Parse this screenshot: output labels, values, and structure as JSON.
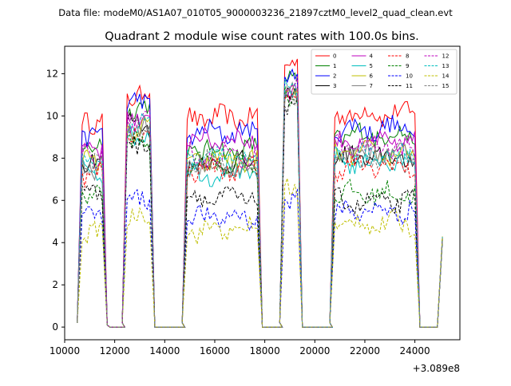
{
  "chart_data": {
    "type": "line",
    "suptitle": "Data file: modeM0/AS1A07_010T05_9000003236_21897cztM0_level2_quad_clean.evt",
    "title": "Quadrant 2 module wise count rates with 100.0s bins.",
    "xlabel": "",
    "ylabel": "",
    "x_offset_label": "+3.089e8",
    "xlim": [
      10000,
      25800
    ],
    "ylim": [
      -0.6,
      13.3
    ],
    "x_ticks": [
      10000,
      12000,
      14000,
      16000,
      18000,
      20000,
      22000,
      24000
    ],
    "x_tick_labels": [
      "10000",
      "12000",
      "14000",
      "16000",
      "18000",
      "20000",
      "22000",
      "24000"
    ],
    "y_ticks": [
      0,
      2,
      4,
      6,
      8,
      10,
      12
    ],
    "y_tick_labels": [
      "0",
      "2",
      "4",
      "6",
      "8",
      "10",
      "12"
    ],
    "grid": false,
    "legend_position": "upper-right",
    "bin_seconds": 100,
    "segments": [
      {
        "name": "on-1",
        "x_start": 10700,
        "x_end": 11500
      },
      {
        "name": "on-2",
        "x_start": 12500,
        "x_end": 13400
      },
      {
        "name": "on-3",
        "x_start": 14900,
        "x_end": 17700
      },
      {
        "name": "on-4",
        "x_start": 18800,
        "x_end": 19300
      },
      {
        "name": "on-5",
        "x_start": 20800,
        "x_end": 24000
      }
    ],
    "gaps": [
      {
        "x_start": 11800,
        "x_end": 12400
      },
      {
        "x_start": 13600,
        "x_end": 14800
      },
      {
        "x_start": 17900,
        "x_end": 18700
      },
      {
        "x_start": 19500,
        "x_end": 20700
      },
      {
        "x_start": 24200,
        "x_end": 24900
      }
    ],
    "final_point": {
      "x": 25100,
      "y": 4.2
    },
    "series": [
      {
        "name": "0",
        "color": "#ff0000",
        "dash": "solid",
        "levels": [
          9.8,
          11.0,
          9.9,
          12.3,
          10.1
        ]
      },
      {
        "name": "1",
        "color": "#008000",
        "dash": "solid",
        "levels": [
          8.7,
          10.3,
          8.4,
          11.6,
          9.1
        ]
      },
      {
        "name": "2",
        "color": "#0000ff",
        "dash": "solid",
        "levels": [
          9.1,
          10.6,
          9.2,
          11.9,
          9.4
        ]
      },
      {
        "name": "3",
        "color": "#000000",
        "dash": "solid",
        "levels": [
          7.8,
          9.6,
          7.7,
          11.2,
          8.0
        ]
      },
      {
        "name": "4",
        "color": "#bf00bf",
        "dash": "solid",
        "levels": [
          8.4,
          9.9,
          8.9,
          11.4,
          8.7
        ]
      },
      {
        "name": "5",
        "color": "#00bfbf",
        "dash": "solid",
        "levels": [
          7.5,
          9.2,
          7.3,
          10.9,
          7.8
        ]
      },
      {
        "name": "6",
        "color": "#bfbf00",
        "dash": "solid",
        "levels": [
          8.0,
          9.4,
          7.9,
          11.0,
          8.2
        ]
      },
      {
        "name": "7",
        "color": "#808080",
        "dash": "solid",
        "levels": [
          7.6,
          9.3,
          7.6,
          11.1,
          8.3
        ]
      },
      {
        "name": "8",
        "color": "#ff0000",
        "dash": "dashed",
        "levels": [
          7.3,
          9.0,
          7.5,
          10.8,
          7.6
        ]
      },
      {
        "name": "9",
        "color": "#008000",
        "dash": "dashed",
        "levels": [
          6.2,
          8.7,
          7.8,
          11.0,
          6.3
        ]
      },
      {
        "name": "10",
        "color": "#0000ff",
        "dash": "dashed",
        "levels": [
          5.2,
          6.2,
          5.2,
          6.2,
          5.5
        ]
      },
      {
        "name": "11",
        "color": "#000000",
        "dash": "dashed",
        "levels": [
          6.4,
          8.8,
          6.1,
          10.7,
          5.9
        ]
      },
      {
        "name": "12",
        "color": "#bf00bf",
        "dash": "dashed",
        "levels": [
          8.2,
          9.7,
          8.1,
          11.3,
          8.5
        ]
      },
      {
        "name": "13",
        "color": "#00bfbf",
        "dash": "dashed",
        "levels": [
          7.9,
          9.5,
          8.0,
          11.2,
          8.1
        ]
      },
      {
        "name": "14",
        "color": "#bfbf00",
        "dash": "dashed",
        "levels": [
          4.6,
          5.2,
          4.6,
          6.5,
          4.9
        ]
      },
      {
        "name": "15",
        "color": "#808080",
        "dash": "dashed",
        "levels": [
          7.7,
          9.4,
          7.8,
          11.1,
          8.0
        ]
      }
    ]
  }
}
